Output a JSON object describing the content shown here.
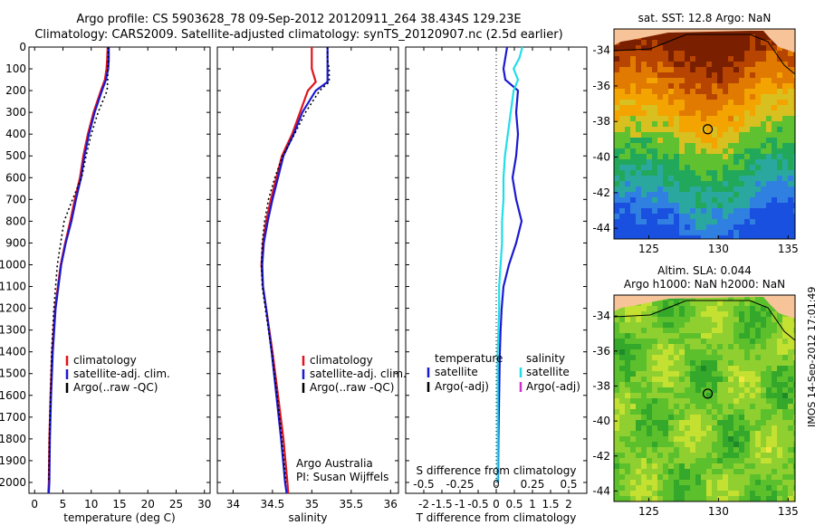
{
  "header": {
    "line1": "Argo profile: CS 5903628_78 09-Sep-2012 20120911_264 38.434S 129.23E",
    "line2": "Climatology: CARS2009. Satellite-adjusted climatology: synTS_20120907.nc (2.5d earlier)"
  },
  "stamp": "IMOS 14-Sep-2012 17:01:49",
  "colors": {
    "climatology": "#e0151b",
    "satellite": "#1a1ad0",
    "argo": "#000000",
    "satellite_s": "#22dde8",
    "argo_s": "#cc33cc"
  },
  "depth_ticks": [
    0,
    100,
    200,
    300,
    400,
    500,
    600,
    700,
    800,
    900,
    1000,
    1100,
    1200,
    1300,
    1400,
    1500,
    1600,
    1700,
    1800,
    1900,
    2000
  ],
  "chart_data": [
    {
      "id": "temperature",
      "type": "line",
      "xlabel": "temperature (deg C)",
      "xlim": [
        -1,
        31
      ],
      "ylim": [
        2050,
        0
      ],
      "xticks": [
        0,
        5,
        10,
        15,
        20,
        25,
        30
      ],
      "legend": {
        "placement": "lower-left",
        "entries": [
          "climatology",
          "satellite-adj. clim.",
          "Argo(..raw -QC)"
        ]
      },
      "series": [
        {
          "name": "climatology",
          "depth": [
            0,
            60,
            100,
            150,
            200,
            300,
            400,
            500,
            600,
            700,
            800,
            900,
            1000,
            1200,
            1400,
            1600,
            1800,
            2000,
            2050
          ],
          "values": [
            12.9,
            12.8,
            12.7,
            12.4,
            11.7,
            10.4,
            9.4,
            8.6,
            8.0,
            7.1,
            6.3,
            5.4,
            4.6,
            3.6,
            3.1,
            2.8,
            2.6,
            2.5,
            2.4
          ]
        },
        {
          "name": "satellite-adj. clim.",
          "depth": [
            0,
            60,
            100,
            150,
            200,
            300,
            400,
            500,
            600,
            700,
            800,
            900,
            1000,
            1200,
            1400,
            1600,
            1800,
            2000,
            2050
          ],
          "values": [
            13.1,
            13.1,
            13.0,
            12.6,
            11.9,
            10.6,
            9.6,
            8.8,
            8.2,
            7.3,
            6.5,
            5.5,
            4.7,
            3.7,
            3.2,
            2.9,
            2.7,
            2.6,
            2.5
          ]
        },
        {
          "name": "Argo(..raw -QC)",
          "depth": [
            0,
            60,
            100,
            150,
            200,
            300,
            400,
            500,
            600,
            700,
            800,
            900,
            1000,
            1200,
            1400,
            1600,
            1800,
            2000
          ],
          "values": [
            13.0,
            13.0,
            12.9,
            12.9,
            12.8,
            11.2,
            10.0,
            9.1,
            8.3,
            6.7,
            5.2,
            4.6,
            4.0,
            3.4,
            3.0,
            2.8,
            2.6,
            2.5
          ]
        }
      ]
    },
    {
      "id": "salinity",
      "type": "line",
      "xlabel": "salinity",
      "xlim": [
        33.8,
        36.1
      ],
      "ylim": [
        2050,
        0
      ],
      "xticks": [
        34,
        34.5,
        35,
        35.5,
        36
      ],
      "legend": {
        "placement": "lower-right",
        "entries": [
          "climatology",
          "satellite-adj. clim.",
          "Argo(..raw -QC)"
        ]
      },
      "annotation": [
        "Argo Australia",
        "PI: Susan Wijffels"
      ],
      "series": [
        {
          "name": "climatology",
          "depth": [
            0,
            60,
            100,
            160,
            200,
            300,
            400,
            500,
            600,
            700,
            800,
            900,
            1000,
            1100,
            1200,
            1400,
            1600,
            1800,
            2000,
            2050
          ],
          "values": [
            35.0,
            35.0,
            35.0,
            35.05,
            34.95,
            34.85,
            34.75,
            34.62,
            34.55,
            34.48,
            34.42,
            34.38,
            34.36,
            34.38,
            34.42,
            34.5,
            34.57,
            34.64,
            34.69,
            34.7
          ]
        },
        {
          "name": "satellite-adj. clim.",
          "depth": [
            0,
            60,
            100,
            160,
            200,
            300,
            400,
            500,
            600,
            700,
            800,
            900,
            1000,
            1100,
            1200,
            1400,
            1600,
            1800,
            2000,
            2050
          ],
          "values": [
            35.2,
            35.2,
            35.2,
            35.2,
            35.05,
            34.88,
            34.77,
            34.64,
            34.57,
            34.5,
            34.44,
            34.39,
            34.37,
            34.38,
            34.42,
            34.49,
            34.55,
            34.61,
            34.66,
            34.68
          ]
        },
        {
          "name": "Argo(..raw -QC)",
          "depth": [
            0,
            60,
            100,
            160,
            200,
            300,
            400,
            500,
            600,
            700,
            800,
            900,
            1000,
            1100,
            1200,
            1400,
            1600,
            1800,
            2000
          ],
          "values": [
            35.2,
            35.2,
            35.22,
            35.22,
            35.1,
            34.92,
            34.78,
            34.63,
            34.53,
            34.45,
            34.4,
            34.37,
            34.36,
            34.37,
            34.41,
            34.49,
            34.56,
            34.62,
            34.67
          ]
        }
      ]
    },
    {
      "id": "difference",
      "type": "line",
      "xlabel": "T difference from climatology",
      "xlabel_top": "S difference from climatology",
      "xlim": [
        -2.5,
        2.5
      ],
      "ylim": [
        2050,
        0
      ],
      "xticks": [
        -2,
        -1.5,
        -1,
        -0.5,
        0,
        0.5,
        1,
        1.5,
        2
      ],
      "xticklabels": [
        "-2",
        "-1.5",
        "-1",
        "-0.5",
        "0",
        "0.5",
        "1",
        "1.5",
        "2"
      ],
      "top_ticks": [
        -0.5,
        -0.25,
        0,
        0.25,
        0.5
      ],
      "top_ticklabels": [
        "-0.5",
        "-0.25",
        "0",
        "0.25",
        "0.5"
      ],
      "legend": {
        "placement": "lower-center",
        "temperature_title": "temperature",
        "salinity_title": "salinity",
        "temperature_entries": [
          "satellite",
          "Argo(-adj)"
        ],
        "salinity_entries": [
          "satellite",
          "Argo(-adj)"
        ]
      },
      "series": [
        {
          "name": "satellite",
          "quantity": "temperature",
          "depth": [
            0,
            100,
            150,
            200,
            300,
            400,
            500,
            600,
            700,
            800,
            900,
            1000,
            1100,
            1200,
            1300,
            1400,
            1600,
            1800,
            2000
          ],
          "values": [
            0.3,
            0.2,
            0.25,
            0.6,
            0.55,
            0.6,
            0.55,
            0.45,
            0.55,
            0.7,
            0.55,
            0.35,
            0.2,
            0.15,
            0.12,
            0.1,
            0.08,
            0.06,
            0.05
          ]
        },
        {
          "name": "satellite",
          "quantity": "salinity",
          "depth": [
            0,
            50,
            100,
            150,
            200,
            300,
            400,
            500,
            600,
            700,
            800,
            900,
            1000,
            1100,
            1200,
            1400,
            1600,
            1800,
            2000
          ],
          "values": [
            0.18,
            0.16,
            0.12,
            0.15,
            0.12,
            0.1,
            0.08,
            0.06,
            0.05,
            0.05,
            0.04,
            0.04,
            0.03,
            0.02,
            0.02,
            0.01,
            0.01,
            0.01,
            0.01
          ]
        }
      ]
    }
  ],
  "maps": [
    {
      "id": "sst-map",
      "title": "sat. SST: 12.8  Argo: NaN",
      "xlim": [
        122.5,
        135.5
      ],
      "ylim": [
        -44.6,
        -32.8
      ],
      "xticks": [
        125,
        130,
        135
      ],
      "yticks": [
        -34,
        -36,
        -38,
        -40,
        -42,
        -44
      ],
      "marker": {
        "lon": 129.23,
        "lat": -38.434
      },
      "colors": [
        "#7a1f00",
        "#b74400",
        "#e07a00",
        "#f3a400",
        "#d8c020",
        "#5fc030",
        "#22a85a",
        "#2aa8a0",
        "#2f80e0",
        "#1a50e0"
      ]
    },
    {
      "id": "sla-map",
      "title_line1": "Altim. SLA: 0.044",
      "title_line2": "Argo h1000: NaN h2000: NaN",
      "xlim": [
        122.5,
        135.5
      ],
      "ylim": [
        -44.6,
        -32.8
      ],
      "xticks": [
        125,
        130,
        135
      ],
      "yticks": [
        -34,
        -36,
        -38,
        -40,
        -42,
        -44
      ],
      "marker": {
        "lon": 129.23,
        "lat": -38.434
      },
      "colors": [
        "#1f8a2a",
        "#34a82a",
        "#5cc02c",
        "#8fd030",
        "#c4e030",
        "#f0e840"
      ]
    }
  ]
}
